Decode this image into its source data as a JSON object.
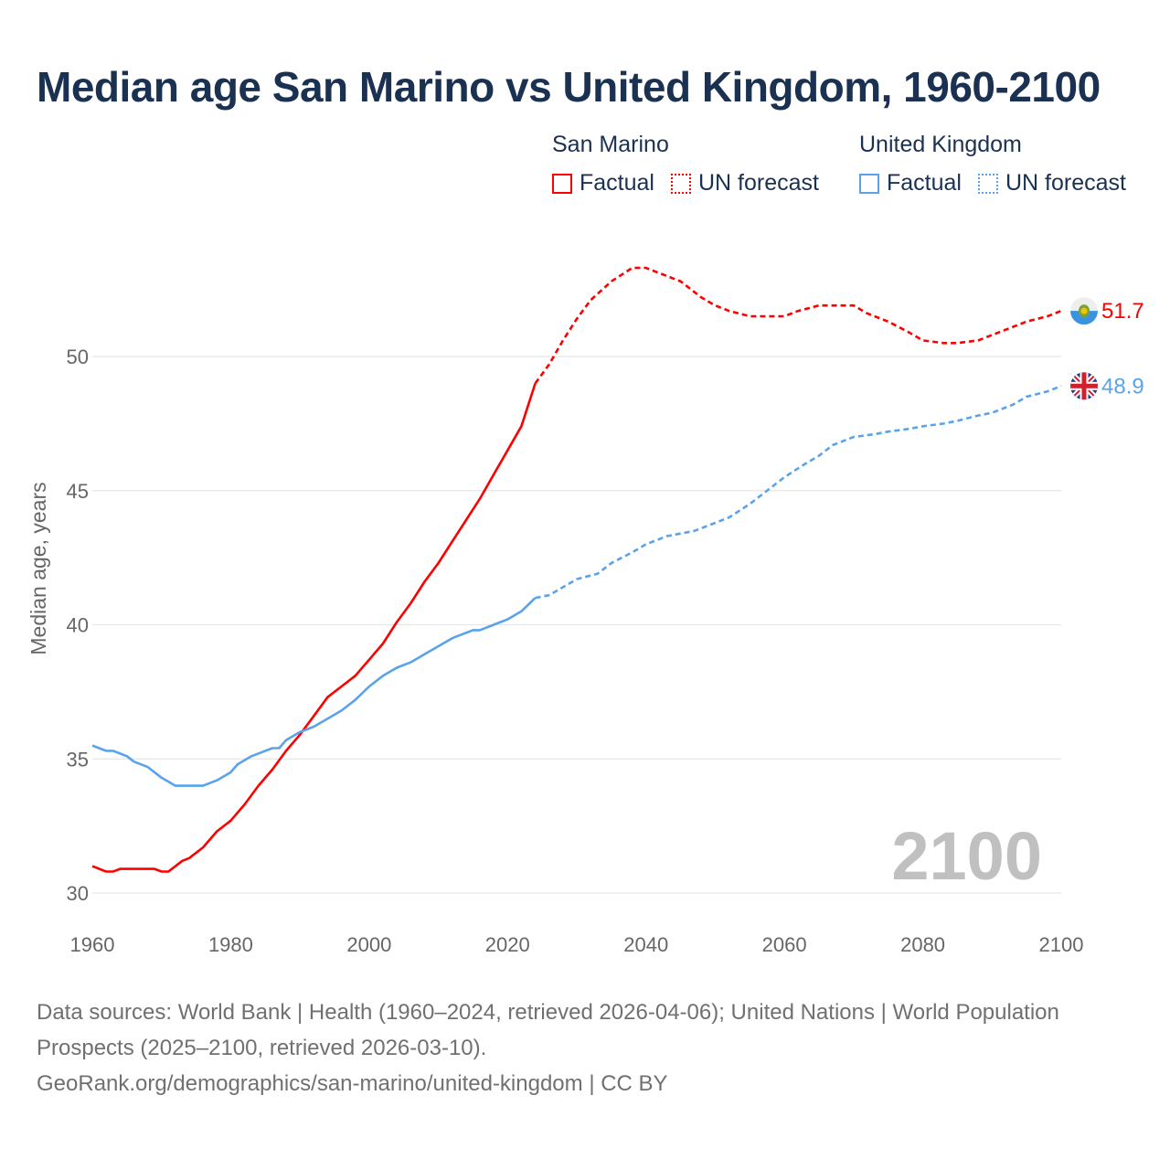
{
  "chart_data": {
    "type": "line",
    "title": "Median age San Marino vs United Kingdom, 1960-2100",
    "ylabel": "Median age, years",
    "xlabel": "",
    "xlim": [
      1960,
      2100
    ],
    "ylim": [
      29,
      54
    ],
    "x_ticks": [
      1960,
      1980,
      2000,
      2020,
      2040,
      2060,
      2080,
      2100
    ],
    "y_ticks": [
      30,
      35,
      40,
      45,
      50
    ],
    "grid": true,
    "year_watermark": "2100",
    "legend": {
      "placement": "top-right",
      "groups": [
        {
          "name": "San Marino",
          "items": [
            "Factual",
            "UN forecast"
          ]
        },
        {
          "name": "United Kingdom",
          "items": [
            "Factual",
            "UN forecast"
          ]
        }
      ]
    },
    "series": [
      {
        "name": "San Marino",
        "color": "#ff0000",
        "end_label": "51.7",
        "factual": [
          [
            1960,
            31.0
          ],
          [
            1962,
            30.8
          ],
          [
            1963,
            30.8
          ],
          [
            1964,
            30.9
          ],
          [
            1966,
            30.9
          ],
          [
            1969,
            30.9
          ],
          [
            1970,
            30.8
          ],
          [
            1971,
            30.8
          ],
          [
            1973,
            31.2
          ],
          [
            1974,
            31.3
          ],
          [
            1976,
            31.7
          ],
          [
            1978,
            32.3
          ],
          [
            1980,
            32.7
          ],
          [
            1982,
            33.3
          ],
          [
            1984,
            34.0
          ],
          [
            1986,
            34.6
          ],
          [
            1988,
            35.3
          ],
          [
            1990,
            35.9
          ],
          [
            1992,
            36.6
          ],
          [
            1994,
            37.3
          ],
          [
            1996,
            37.7
          ],
          [
            1998,
            38.1
          ],
          [
            2000,
            38.7
          ],
          [
            2002,
            39.3
          ],
          [
            2004,
            40.1
          ],
          [
            2006,
            40.8
          ],
          [
            2008,
            41.6
          ],
          [
            2010,
            42.3
          ],
          [
            2012,
            43.1
          ],
          [
            2014,
            43.9
          ],
          [
            2016,
            44.7
          ],
          [
            2018,
            45.6
          ],
          [
            2020,
            46.5
          ],
          [
            2022,
            47.4
          ],
          [
            2024,
            49.0
          ]
        ],
        "forecast": [
          [
            2024,
            49.0
          ],
          [
            2026,
            49.7
          ],
          [
            2028,
            50.6
          ],
          [
            2030,
            51.4
          ],
          [
            2032,
            52.1
          ],
          [
            2035,
            52.8
          ],
          [
            2038,
            53.3
          ],
          [
            2040,
            53.3
          ],
          [
            2042,
            53.1
          ],
          [
            2045,
            52.8
          ],
          [
            2048,
            52.2
          ],
          [
            2050,
            51.9
          ],
          [
            2052,
            51.7
          ],
          [
            2055,
            51.5
          ],
          [
            2058,
            51.5
          ],
          [
            2060,
            51.5
          ],
          [
            2062,
            51.7
          ],
          [
            2065,
            51.9
          ],
          [
            2068,
            51.9
          ],
          [
            2070,
            51.9
          ],
          [
            2072,
            51.6
          ],
          [
            2075,
            51.3
          ],
          [
            2078,
            50.9
          ],
          [
            2080,
            50.6
          ],
          [
            2083,
            50.5
          ],
          [
            2085,
            50.5
          ],
          [
            2088,
            50.6
          ],
          [
            2090,
            50.8
          ],
          [
            2093,
            51.1
          ],
          [
            2095,
            51.3
          ],
          [
            2098,
            51.5
          ],
          [
            2100,
            51.7
          ]
        ]
      },
      {
        "name": "United Kingdom",
        "color": "#5aa3ea",
        "end_label": "48.9",
        "factual": [
          [
            1960,
            35.5
          ],
          [
            1962,
            35.3
          ],
          [
            1963,
            35.3
          ],
          [
            1965,
            35.1
          ],
          [
            1966,
            34.9
          ],
          [
            1968,
            34.7
          ],
          [
            1970,
            34.3
          ],
          [
            1972,
            34.0
          ],
          [
            1974,
            34.0
          ],
          [
            1976,
            34.0
          ],
          [
            1978,
            34.2
          ],
          [
            1980,
            34.5
          ],
          [
            1981,
            34.8
          ],
          [
            1983,
            35.1
          ],
          [
            1985,
            35.3
          ],
          [
            1986,
            35.4
          ],
          [
            1987,
            35.4
          ],
          [
            1988,
            35.7
          ],
          [
            1990,
            36.0
          ],
          [
            1992,
            36.2
          ],
          [
            1994,
            36.5
          ],
          [
            1996,
            36.8
          ],
          [
            1998,
            37.2
          ],
          [
            2000,
            37.7
          ],
          [
            2002,
            38.1
          ],
          [
            2004,
            38.4
          ],
          [
            2006,
            38.6
          ],
          [
            2008,
            38.9
          ],
          [
            2010,
            39.2
          ],
          [
            2012,
            39.5
          ],
          [
            2015,
            39.8
          ],
          [
            2016,
            39.8
          ],
          [
            2018,
            40.0
          ],
          [
            2020,
            40.2
          ],
          [
            2022,
            40.5
          ],
          [
            2024,
            41.0
          ]
        ],
        "forecast": [
          [
            2024,
            41.0
          ],
          [
            2026,
            41.1
          ],
          [
            2028,
            41.4
          ],
          [
            2030,
            41.7
          ],
          [
            2033,
            41.9
          ],
          [
            2035,
            42.3
          ],
          [
            2038,
            42.7
          ],
          [
            2040,
            43.0
          ],
          [
            2043,
            43.3
          ],
          [
            2045,
            43.4
          ],
          [
            2047,
            43.5
          ],
          [
            2050,
            43.8
          ],
          [
            2052,
            44.0
          ],
          [
            2055,
            44.5
          ],
          [
            2058,
            45.1
          ],
          [
            2060,
            45.5
          ],
          [
            2063,
            46.0
          ],
          [
            2065,
            46.3
          ],
          [
            2067,
            46.7
          ],
          [
            2070,
            47.0
          ],
          [
            2073,
            47.1
          ],
          [
            2075,
            47.2
          ],
          [
            2078,
            47.3
          ],
          [
            2080,
            47.4
          ],
          [
            2083,
            47.5
          ],
          [
            2085,
            47.6
          ],
          [
            2088,
            47.8
          ],
          [
            2090,
            47.9
          ],
          [
            2093,
            48.2
          ],
          [
            2095,
            48.5
          ],
          [
            2098,
            48.7
          ],
          [
            2100,
            48.9
          ]
        ]
      }
    ]
  },
  "footer": {
    "line1": "Data sources: World Bank | Health (1960–2024, retrieved 2026-04-06); United Nations | World Population Prospects (2025–2100, retrieved 2026-03-10).",
    "line2": "GeoRank.org/demographics/san-marino/united-kingdom | CC BY"
  }
}
